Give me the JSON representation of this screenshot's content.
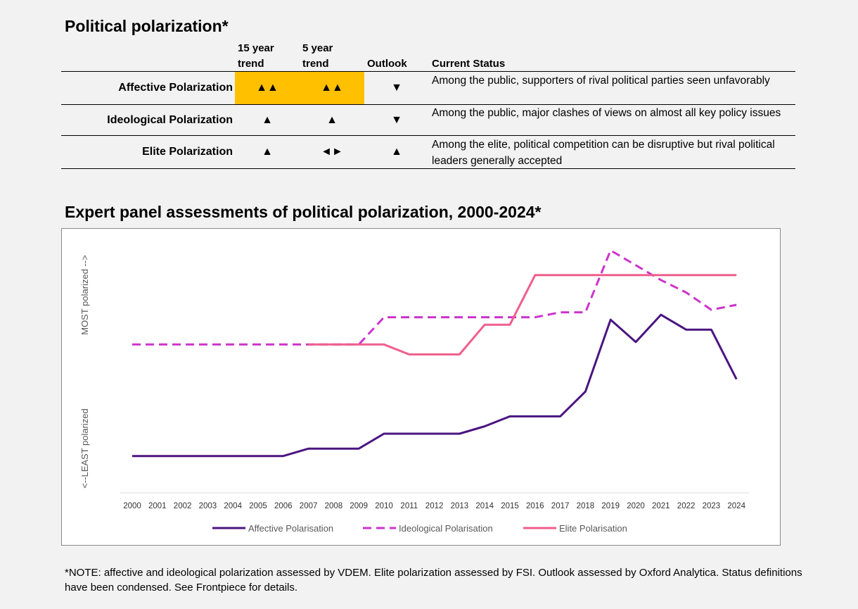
{
  "table": {
    "title": "Political polarization*",
    "headers": {
      "trend15": "15 year trend",
      "trend5": "5 year trend",
      "outlook": "Outlook",
      "status": "Current Status"
    },
    "rows": [
      {
        "label": "Affective Polarization",
        "trend15": "▲▲",
        "trend5": "▲▲",
        "outlook": "▼",
        "status": "Among the public, supporters of rival political parties seen unfavorably",
        "highlight": true
      },
      {
        "label": "Ideological Polarization",
        "trend15": "▲",
        "trend5": "▲",
        "outlook": "▼",
        "status": "Among the public, major clashes of views on almost all key policy issues",
        "highlight": false
      },
      {
        "label": "Elite Polarization",
        "trend15": "▲",
        "trend5": "◄►",
        "outlook": "▲",
        "status": "Among the elite, political competition can be disruptive but rival political leaders generally accepted",
        "highlight": false
      }
    ],
    "highlight_color": "#ffc000"
  },
  "chart_data": {
    "type": "line",
    "title": "Expert panel assessments of political polarization, 2000-2024*",
    "ylabel_low": "<--LEAST polarized",
    "ylabel_high": "MOST polarized -->",
    "xlabel": "",
    "legend_position": "bottom",
    "grid": false,
    "ylim": [
      0,
      1
    ],
    "x": [
      "2000",
      "2001",
      "2002",
      "2003",
      "2004",
      "2005",
      "2006",
      "2007",
      "2008",
      "2009",
      "2010",
      "2011",
      "2012",
      "2013",
      "2014",
      "2015",
      "2016",
      "2017",
      "2018",
      "2019",
      "2020",
      "2021",
      "2022",
      "2023",
      "2024"
    ],
    "series": [
      {
        "name": "Affective Polarisation",
        "color": "#4b1580",
        "style": "solid",
        "values": [
          0.14,
          0.14,
          0.14,
          0.14,
          0.14,
          0.14,
          0.14,
          0.17,
          0.17,
          0.17,
          0.23,
          0.23,
          0.23,
          0.23,
          0.26,
          0.3,
          0.3,
          0.3,
          0.4,
          0.69,
          0.6,
          0.71,
          0.65,
          0.65,
          0.45
        ]
      },
      {
        "name": "Ideological Polarisation",
        "color": "#cc33cc",
        "style": "dashed",
        "values": [
          0.59,
          0.59,
          0.59,
          0.59,
          0.59,
          0.59,
          0.59,
          0.59,
          0.59,
          0.59,
          0.7,
          0.7,
          0.7,
          0.7,
          0.7,
          0.7,
          0.7,
          0.72,
          0.72,
          0.97,
          0.91,
          0.85,
          0.8,
          0.73,
          0.75
        ]
      },
      {
        "name": "Elite Polarisation",
        "color": "#f05e8c",
        "style": "solid",
        "values": [
          null,
          null,
          null,
          null,
          null,
          null,
          null,
          0.59,
          0.59,
          0.59,
          0.59,
          0.55,
          0.55,
          0.55,
          0.67,
          0.67,
          0.87,
          0.87,
          0.87,
          0.87,
          0.87,
          0.87,
          0.87,
          0.87,
          0.87
        ]
      }
    ]
  },
  "note": "*NOTE: affective and ideological polarization assessed by VDEM. Elite polarization assessed by FSI. Outlook assessed by Oxford Analytica. Status definitions have been condensed. See Frontpiece for details."
}
